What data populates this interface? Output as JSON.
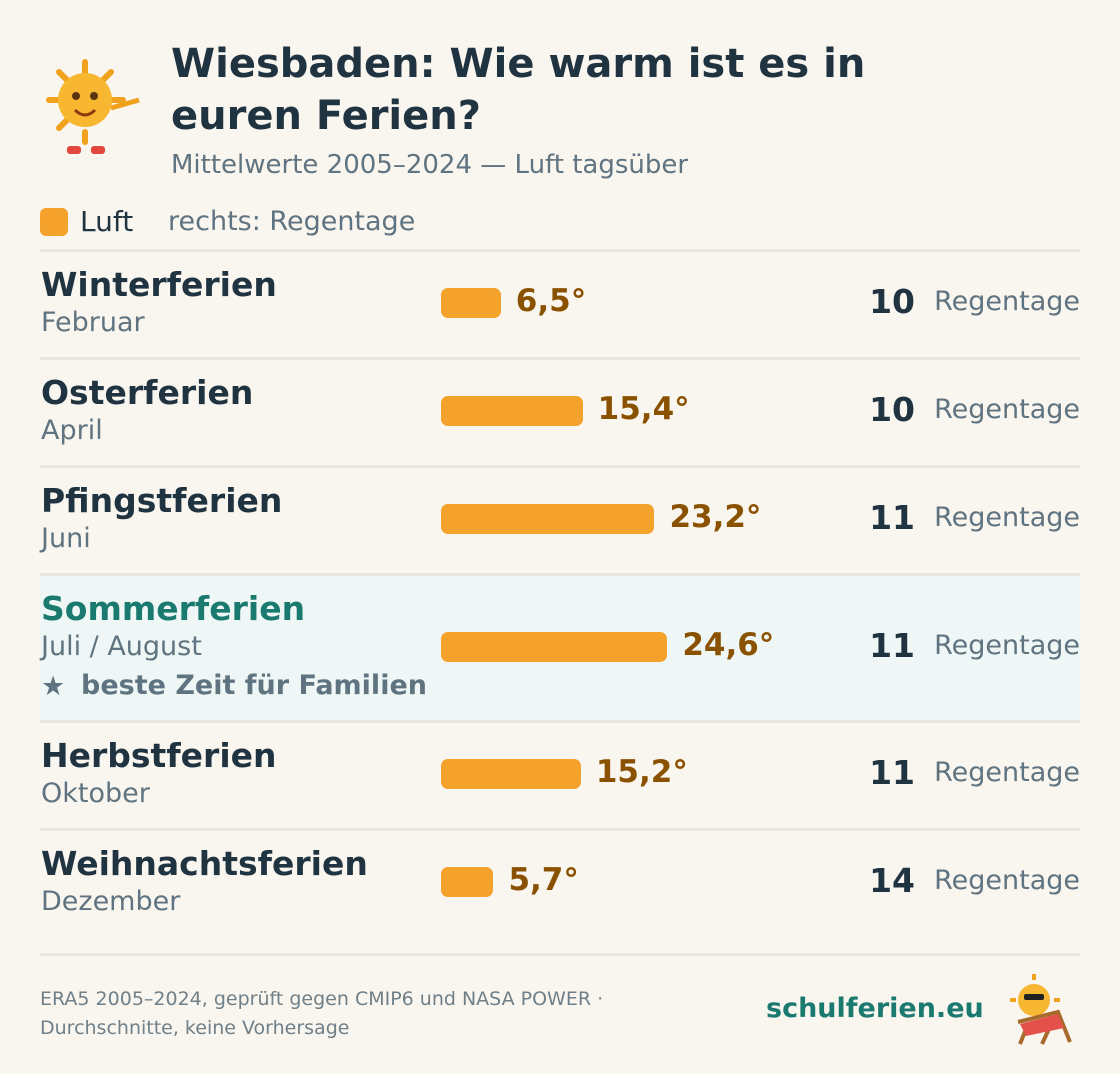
{
  "chart_data": {
    "type": "bar",
    "title": "Wiesbaden: Wie warm ist es in euren Ferien?",
    "subtitle": "Mittelwerte 2005–2024 — Luft tagsüber",
    "series": [
      {
        "name": "Luft",
        "color": "#f4a22c",
        "values": [
          6.5,
          15.4,
          23.2,
          24.6,
          15.2,
          5.7
        ],
        "value_labels": [
          "6,5°",
          "15,4°",
          "23,2°",
          "24,6°",
          "15,2°",
          "5,7°"
        ]
      }
    ],
    "legend_note": "rechts: Regentage",
    "categories": [
      "Winterferien",
      "Osterferien",
      "Pfingstferien",
      "Sommerferien",
      "Herbstferien",
      "Weihnachtsferien"
    ],
    "category_subtitles": [
      "Februar",
      "April",
      "Juni",
      "Juli / August",
      "Oktober",
      "Dezember"
    ],
    "notes": [
      null,
      null,
      null,
      "beste Zeit für Familien",
      null,
      null
    ],
    "rain_days": [
      10,
      10,
      11,
      11,
      11,
      14
    ],
    "rain_label": "Regentage",
    "footer": {
      "source_lines": [
        "ERA5 2005–2024, geprüft gegen CMIP6 und NASA POWER ·",
        "Durchschnitte, keine Vorhersage"
      ],
      "brand": "schulferien.eu"
    }
  }
}
